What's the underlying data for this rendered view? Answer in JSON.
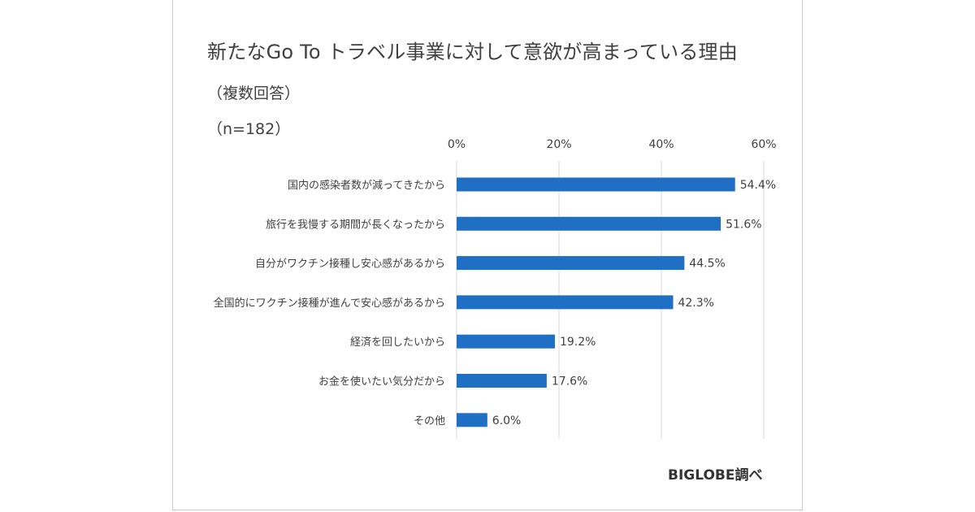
{
  "title": "新たなGo To トラベル事業に対して意欲が高まっている理由",
  "subtitle_1": "（複数回答）",
  "subtitle_2": "（n=182）",
  "source": "BIGLOBE調べ",
  "colors": {
    "bar": "#1f6fc5",
    "grid": "#d9d9d9"
  },
  "chart_data": {
    "type": "bar",
    "orientation": "horizontal",
    "title": "新たなGo To トラベル事業に対して意欲が高まっている理由",
    "categories": [
      "国内の感染者数が減ってきたから",
      "旅行を我慢する期間が長くなったから",
      "自分がワクチン接種し安心感があるから",
      "全国的にワクチン接種が進んで安心感があるから",
      "経済を回したいから",
      "お金を使いたい気分だから",
      "その他"
    ],
    "values": [
      54.4,
      51.6,
      44.5,
      42.3,
      19.2,
      17.6,
      6.0
    ],
    "value_labels": [
      "54.4%",
      "51.6%",
      "44.5%",
      "42.3%",
      "19.2%",
      "17.6%",
      "6.0%"
    ],
    "xlim": [
      0,
      60
    ],
    "ticks": [
      0,
      20,
      40,
      60
    ],
    "tick_labels": [
      "0%",
      "20%",
      "40%",
      "60%"
    ],
    "grid": true,
    "legend": "none"
  }
}
